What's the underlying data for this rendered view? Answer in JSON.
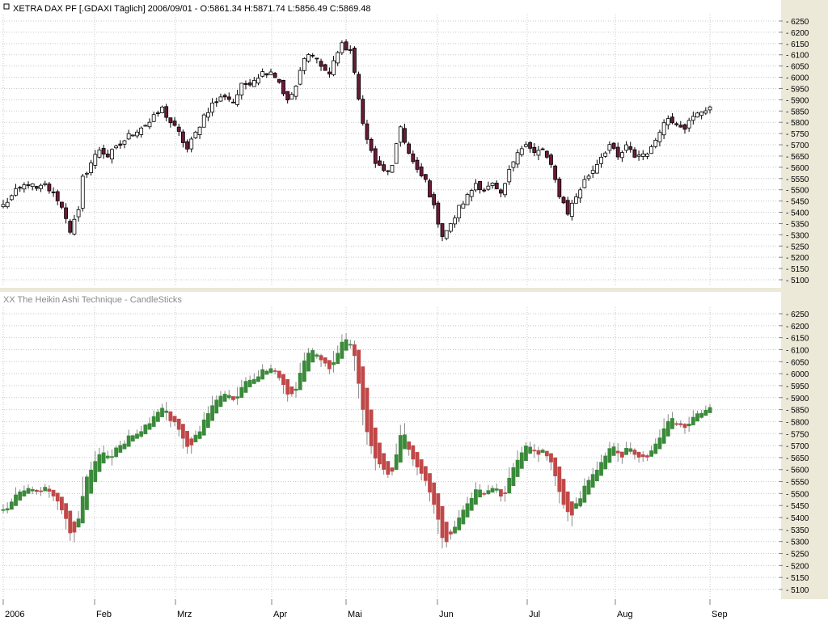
{
  "top_panel": {
    "header": "XETRA DAX PF [.GDAXI  Täglich] 2006/09/01 - O:5861.34 H:5871.74 L:5856.49 C:5869.48"
  },
  "bottom_panel": {
    "header": "XX The Heikin Ashi Technique - CandleSticks"
  },
  "colors": {
    "top_up": "#ffffff",
    "top_down": "#6b1a3a",
    "ha_up": "#3a8a3a",
    "ha_down": "#c04848",
    "wick": "#000000",
    "ha_wick": "#888888"
  },
  "chart_data": [
    {
      "type": "candlestick",
      "title": "XETRA DAX PF [.GDAXI  Täglich] 2006/09/01 - O:5861.34 H:5871.74 L:5856.49 C:5869.48",
      "x_ticks": [
        "2006",
        "Feb",
        "Mrz",
        "Apr",
        "Mai",
        "Jun",
        "Jul",
        "Aug",
        "Sep"
      ],
      "y_ticks": [
        6250,
        6200,
        6150,
        6100,
        6050,
        6000,
        5950,
        5900,
        5850,
        5800,
        5750,
        5700,
        5650,
        5600,
        5550,
        5500,
        5450,
        5400,
        5350,
        5300,
        5250,
        5200,
        5150,
        5100
      ],
      "ylim": [
        5080,
        6280
      ],
      "grid": true,
      "close_path": [
        [
          0,
          5430
        ],
        [
          3,
          5490
        ],
        [
          6,
          5530
        ],
        [
          8,
          5500
        ],
        [
          10,
          5520
        ],
        [
          13,
          5460
        ],
        [
          15,
          5380
        ],
        [
          16,
          5320
        ],
        [
          18,
          5400
        ],
        [
          19,
          5550
        ],
        [
          21,
          5620
        ],
        [
          23,
          5680
        ],
        [
          25,
          5650
        ],
        [
          28,
          5700
        ],
        [
          30,
          5740
        ],
        [
          33,
          5780
        ],
        [
          35,
          5800
        ],
        [
          38,
          5860
        ],
        [
          40,
          5800
        ],
        [
          42,
          5750
        ],
        [
          44,
          5680
        ],
        [
          46,
          5750
        ],
        [
          48,
          5830
        ],
        [
          50,
          5880
        ],
        [
          53,
          5920
        ],
        [
          55,
          5890
        ],
        [
          57,
          5960
        ],
        [
          59,
          5980
        ],
        [
          62,
          6020
        ],
        [
          64,
          6030
        ],
        [
          66,
          5980
        ],
        [
          68,
          5890
        ],
        [
          70,
          5960
        ],
        [
          72,
          6080
        ],
        [
          74,
          6110
        ],
        [
          76,
          6050
        ],
        [
          78,
          6010
        ],
        [
          79,
          6080
        ],
        [
          81,
          6140
        ],
        [
          83,
          6120
        ],
        [
          85,
          5900
        ],
        [
          87,
          5720
        ],
        [
          89,
          5620
        ],
        [
          91,
          5580
        ],
        [
          93,
          5600
        ],
        [
          95,
          5780
        ],
        [
          97,
          5660
        ],
        [
          99,
          5580
        ],
        [
          101,
          5540
        ],
        [
          103,
          5420
        ],
        [
          105,
          5300
        ],
        [
          107,
          5340
        ],
        [
          109,
          5420
        ],
        [
          111,
          5470
        ],
        [
          113,
          5530
        ],
        [
          115,
          5500
        ],
        [
          117,
          5520
        ],
        [
          119,
          5470
        ],
        [
          121,
          5580
        ],
        [
          123,
          5680
        ],
        [
          125,
          5700
        ],
        [
          127,
          5660
        ],
        [
          129,
          5680
        ],
        [
          131,
          5600
        ],
        [
          133,
          5480
        ],
        [
          135,
          5400
        ],
        [
          137,
          5470
        ],
        [
          139,
          5540
        ],
        [
          141,
          5590
        ],
        [
          143,
          5650
        ],
        [
          145,
          5700
        ],
        [
          147,
          5640
        ],
        [
          149,
          5690
        ],
        [
          151,
          5650
        ],
        [
          153,
          5660
        ],
        [
          155,
          5680
        ],
        [
          157,
          5770
        ],
        [
          159,
          5820
        ],
        [
          161,
          5800
        ],
        [
          163,
          5780
        ],
        [
          165,
          5820
        ],
        [
          167,
          5850
        ],
        [
          169,
          5869
        ]
      ]
    },
    {
      "type": "candlestick",
      "title": "XX The Heikin Ashi Technique - CandleSticks",
      "x_ticks": [
        "2006",
        "Feb",
        "Mrz",
        "Apr",
        "Mai",
        "Jun",
        "Jul",
        "Aug",
        "Sep"
      ],
      "y_ticks": [
        6250,
        6200,
        6150,
        6100,
        6050,
        6000,
        5950,
        5900,
        5850,
        5800,
        5750,
        5700,
        5650,
        5600,
        5550,
        5500,
        5450,
        5400,
        5350,
        5300,
        5250,
        5200,
        5150,
        5100
      ],
      "ylim": [
        5080,
        6280
      ],
      "grid": true
    }
  ]
}
